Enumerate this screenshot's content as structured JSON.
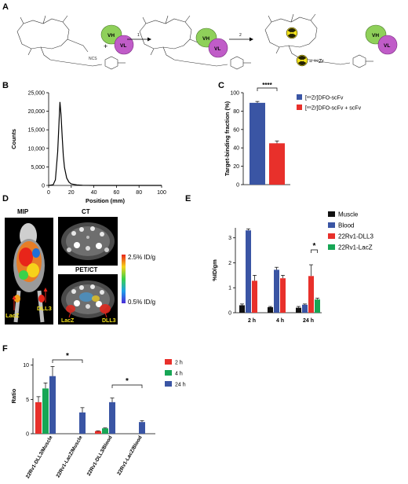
{
  "panels": {
    "a": {
      "letter": "A",
      "step1": "1",
      "step2": "2",
      "linker": "NCS",
      "vh": "VH",
      "vl": "VL",
      "legend_eq": "= ⁸⁹Zr"
    },
    "b": {
      "letter": "B"
    },
    "c": {
      "letter": "C",
      "significance": "****"
    },
    "d": {
      "letter": "D",
      "mip_title": "MIP",
      "ct_title": "CT",
      "petct_title": "PET/CT",
      "scale_max": "2.5% ID/g",
      "scale_min": "0.5% ID/g",
      "label_lacz": "LacZ",
      "label_dll3": "DLL3"
    },
    "e": {
      "letter": "E",
      "significance": "*"
    },
    "f": {
      "letter": "F",
      "significance_1": "*",
      "significance_2": "*"
    }
  },
  "chart_data": [
    {
      "id": "B",
      "type": "line",
      "xlabel": "Position (mm)",
      "ylabel": "Counts",
      "xlim": [
        0,
        100
      ],
      "ylim": [
        0,
        25000
      ],
      "xticks": [
        0,
        20,
        40,
        60,
        80,
        100
      ],
      "yticks": [
        "0",
        "5,000",
        "10,000",
        "15,000",
        "20,000",
        "25,000"
      ],
      "series": [
        {
          "x": [
            0,
            4,
            6,
            8,
            9,
            10,
            11,
            12,
            13,
            14,
            16,
            18,
            20,
            25,
            30,
            40,
            60,
            100
          ],
          "y": [
            0,
            200,
            1500,
            9000,
            16000,
            22500,
            19000,
            13000,
            8000,
            4800,
            2000,
            900,
            400,
            150,
            50,
            0,
            0,
            0
          ]
        }
      ]
    },
    {
      "id": "C",
      "type": "bar",
      "ylabel": "Target-binding fraction (%)",
      "ylim": [
        0,
        100
      ],
      "yticks": [
        0,
        20,
        40,
        60,
        80,
        100
      ],
      "series": [
        {
          "name": "[⁸⁹Zr]DFO-scFv",
          "value": 89,
          "error": 1.5,
          "color": "#3a55a4"
        },
        {
          "name": "[⁸⁹Zr]DFO-scFv + scFv",
          "value": 45,
          "error": 2.5,
          "color": "#e8302b"
        }
      ]
    },
    {
      "id": "E",
      "type": "bar",
      "ylabel": "%ID/gm",
      "ylim": [
        0,
        3.4
      ],
      "yticks": [
        0,
        1,
        2,
        3
      ],
      "categories": [
        "2 h",
        "4 h",
        "24 h"
      ],
      "series": [
        {
          "name": "Muscle",
          "color": "#111111",
          "values": [
            0.3,
            0.22,
            0.2
          ],
          "errors": [
            0.05,
            0.03,
            0.05
          ]
        },
        {
          "name": "Blood",
          "color": "#3a55a4",
          "values": [
            3.3,
            1.72,
            0.32
          ],
          "errors": [
            0.06,
            0.1,
            0.03
          ]
        },
        {
          "name": "22Rv1-DLL3",
          "color": "#e8302b",
          "values": [
            1.28,
            1.38,
            1.47
          ],
          "errors": [
            0.22,
            0.12,
            0.45
          ]
        },
        {
          "name": "22Rv1-LacZ",
          "color": "#17a655",
          "values": [
            null,
            null,
            0.53
          ],
          "errors": [
            0,
            0,
            0.05
          ]
        }
      ]
    },
    {
      "id": "F",
      "type": "bar",
      "ylabel": "Ratio",
      "ylim": [
        0,
        11
      ],
      "yticks": [
        0,
        5,
        10
      ],
      "categories": [
        "22Rv1-DLL3/Muscle",
        "22Rv1-LacZ/Muscle",
        "22Rv1-DLL3/Blood",
        "22Rv1-LacZ/Blood"
      ],
      "series": [
        {
          "name": "2 h",
          "color": "#e8302b",
          "values": [
            4.6,
            null,
            0.38,
            null
          ],
          "errors": [
            0.8,
            0,
            0.05,
            0
          ]
        },
        {
          "name": "4 h",
          "color": "#17a655",
          "values": [
            6.6,
            null,
            0.78,
            null
          ],
          "errors": [
            0.8,
            0,
            0.06,
            0
          ]
        },
        {
          "name": "24 h",
          "color": "#3a55a4",
          "values": [
            8.4,
            3.1,
            4.6,
            1.7
          ],
          "errors": [
            1.4,
            0.7,
            0.6,
            0.2
          ]
        }
      ]
    }
  ]
}
